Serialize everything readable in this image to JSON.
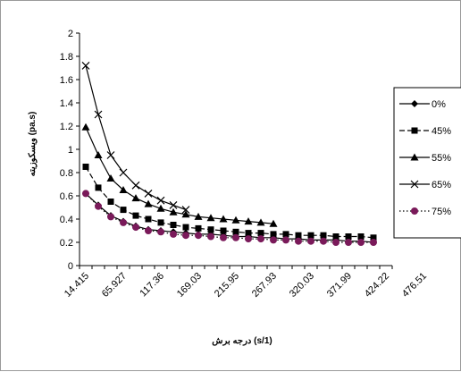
{
  "chart_data": {
    "type": "line",
    "title": "",
    "xlabel": "درجه برش (s/1)",
    "ylabel": "ویسکوزیته (pa.s)",
    "ylim": [
      0,
      2
    ],
    "yticks": [
      "0",
      "0.2",
      "0.4",
      "0.6",
      "0.8",
      "1",
      "1.2",
      "1.4",
      "1.6",
      "1.8",
      "2"
    ],
    "xtick_labels": [
      "14.415",
      "65.927",
      "117.36",
      "169.03",
      "215.95",
      "267.93",
      "320.03",
      "371.99",
      "424.22",
      "476.51"
    ],
    "grid": false,
    "legend_position": "right",
    "series": [
      {
        "name": "0%",
        "color": "#000000",
        "marker": "diamond",
        "line": "solid",
        "values": [
          0.62,
          0.52,
          0.43,
          0.38,
          0.34,
          0.31,
          0.3,
          0.29,
          0.28,
          0.27,
          0.27,
          0.26,
          0.25,
          0.25,
          0.24,
          0.24,
          0.23,
          0.23,
          0.22,
          0.22,
          0.22,
          0.21,
          0.21,
          0.2
        ]
      },
      {
        "name": "45%",
        "color": "#000000",
        "marker": "square",
        "line": "dashed",
        "values": [
          0.85,
          0.67,
          0.55,
          0.48,
          0.43,
          0.4,
          0.37,
          0.35,
          0.33,
          0.32,
          0.31,
          0.3,
          0.29,
          0.28,
          0.28,
          0.27,
          0.27,
          0.26,
          0.26,
          0.26,
          0.25,
          0.25,
          0.25,
          0.24
        ]
      },
      {
        "name": "55%",
        "color": "#000000",
        "marker": "triangle",
        "line": "solid",
        "values": [
          1.19,
          0.95,
          0.75,
          0.65,
          0.58,
          0.53,
          0.49,
          0.46,
          0.44,
          0.42,
          0.41,
          0.4,
          0.39,
          0.38,
          0.37,
          0.36
        ]
      },
      {
        "name": "65%",
        "color": "#000000",
        "marker": "x",
        "line": "solid",
        "values": [
          1.72,
          1.3,
          0.95,
          0.8,
          0.69,
          0.62,
          0.56,
          0.52,
          0.48
        ]
      },
      {
        "name": "75%",
        "color": "#7a1a5a",
        "marker": "circle",
        "line": "dotted",
        "values": [
          0.62,
          0.51,
          0.42,
          0.37,
          0.33,
          0.3,
          0.29,
          0.27,
          0.26,
          0.26,
          0.25,
          0.24,
          0.24,
          0.23,
          0.23,
          0.22,
          0.22,
          0.21,
          0.21,
          0.21,
          0.2,
          0.2,
          0.2,
          0.2
        ]
      }
    ]
  }
}
